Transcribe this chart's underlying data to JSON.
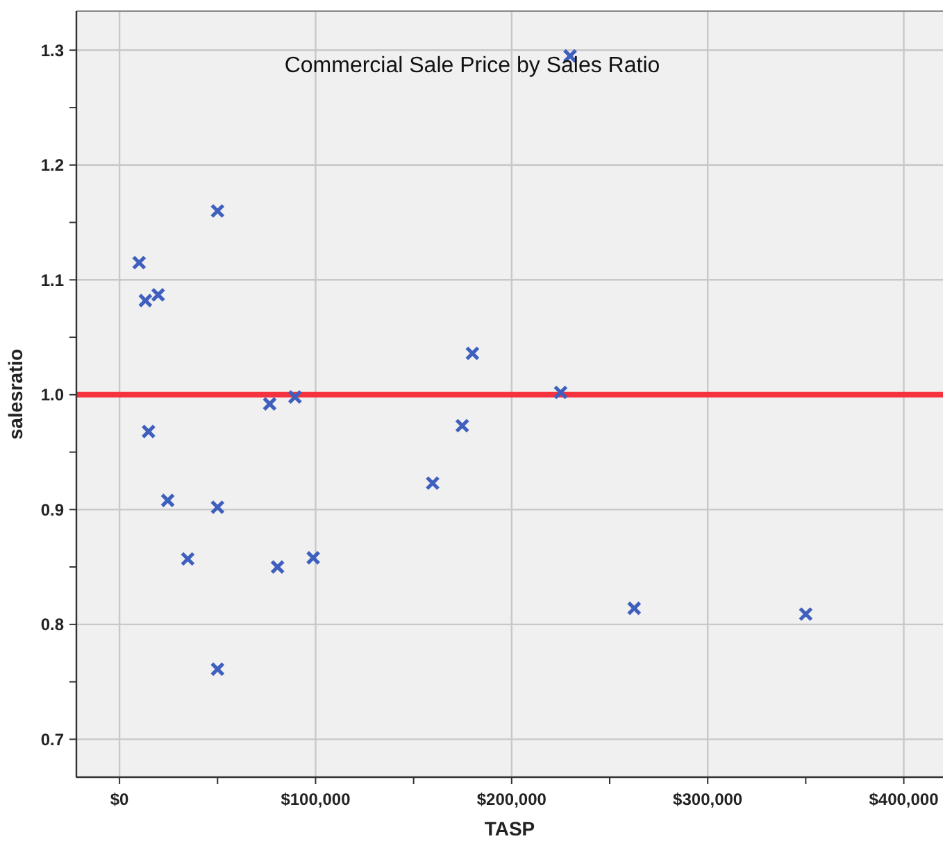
{
  "chart_data": {
    "type": "scatter",
    "title": "Commercial Sale Price by Sales Ratio",
    "xlabel": "TASP",
    "ylabel": "salesratio",
    "x": [
      229800,
      50000,
      10000,
      13200,
      19700,
      180000,
      225000,
      76600,
      89500,
      14800,
      24600,
      50000,
      34800,
      80600,
      98800,
      50000,
      159700,
      174800,
      262500,
      350000
    ],
    "series": [
      {
        "color": "#3f5fbf",
        "values": [
          1.295,
          1.16,
          1.115,
          1.082,
          1.087,
          1.036,
          1.002,
          0.992,
          0.998,
          0.968,
          0.908,
          0.902,
          0.857,
          0.85,
          0.858,
          0.761,
          0.923,
          0.973,
          0.814,
          0.809
        ]
      }
    ],
    "xlim": [
      -22000,
      420000
    ],
    "xticks": [
      {
        "value": 0,
        "label": "$0"
      },
      {
        "value": 50000,
        "label": null
      },
      {
        "value": 100000,
        "label": "$100,000"
      },
      {
        "value": 150000,
        "label": null
      },
      {
        "value": 200000,
        "label": "$200,000"
      },
      {
        "value": 250000,
        "label": null
      },
      {
        "value": 300000,
        "label": "$300,000"
      },
      {
        "value": 350000,
        "label": null
      },
      {
        "value": 400000,
        "label": "$400,000"
      }
    ],
    "ylim": [
      0.667,
      1.334
    ],
    "yticks": [
      {
        "value": 0.7,
        "label": "0.7"
      },
      {
        "value": 0.75,
        "label": null
      },
      {
        "value": 0.8,
        "label": "0.8"
      },
      {
        "value": 0.85,
        "label": null
      },
      {
        "value": 0.9,
        "label": "0.9"
      },
      {
        "value": 0.95,
        "label": null
      },
      {
        "value": 1.0,
        "label": "1.0"
      },
      {
        "value": 1.05,
        "label": null
      },
      {
        "value": 1.1,
        "label": "1.1"
      },
      {
        "value": 1.15,
        "label": null
      },
      {
        "value": 1.2,
        "label": "1.2"
      },
      {
        "value": 1.25,
        "label": null
      },
      {
        "value": 1.3,
        "label": "1.3"
      }
    ],
    "grid": true,
    "marker": "cross",
    "ref_lines": [
      {
        "axis": "y",
        "value": 1.0,
        "color": "#f5333f"
      }
    ]
  }
}
